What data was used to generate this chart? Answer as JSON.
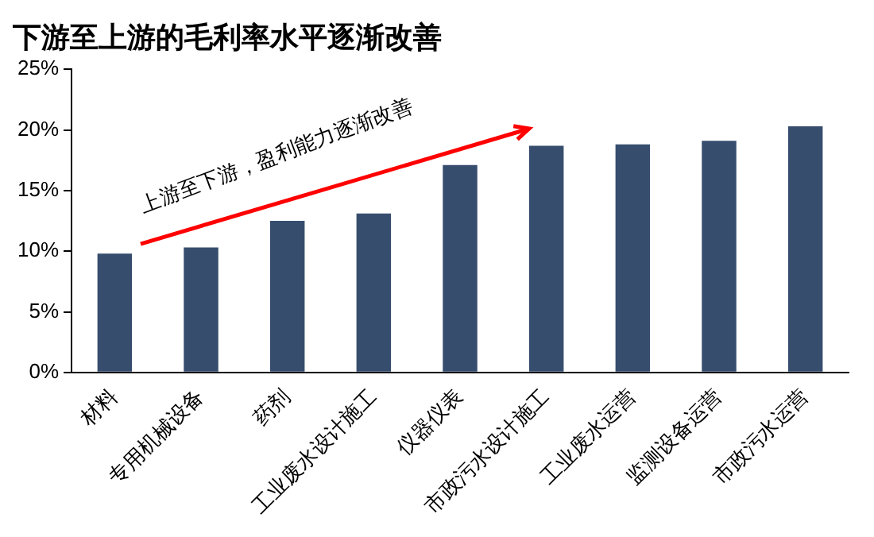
{
  "chart_data": {
    "type": "bar",
    "title": "下游至上游的毛利率水平逐渐改善",
    "categories": [
      "材料",
      "专用机械设备",
      "药剂",
      "工业废水设计施工",
      "仪器仪表",
      "市政污水设计施工",
      "工业废水运营",
      "监测设备运营",
      "市政污水运营"
    ],
    "values": [
      9.8,
      10.3,
      12.5,
      13.1,
      17.1,
      18.7,
      18.8,
      19.1,
      20.3
    ],
    "color": "#364d6e",
    "ylim": [
      0,
      25
    ],
    "yticks": [
      {
        "value": 0,
        "label": "0%"
      },
      {
        "value": 5,
        "label": "5%"
      },
      {
        "value": 10,
        "label": "10%"
      },
      {
        "value": 15,
        "label": "15%"
      },
      {
        "value": 20,
        "label": "20%"
      },
      {
        "value": 25,
        "label": "25%"
      }
    ],
    "annotations": [
      "上游至下游，盈利能力逐渐改善"
    ],
    "grid": false,
    "legend": false
  }
}
